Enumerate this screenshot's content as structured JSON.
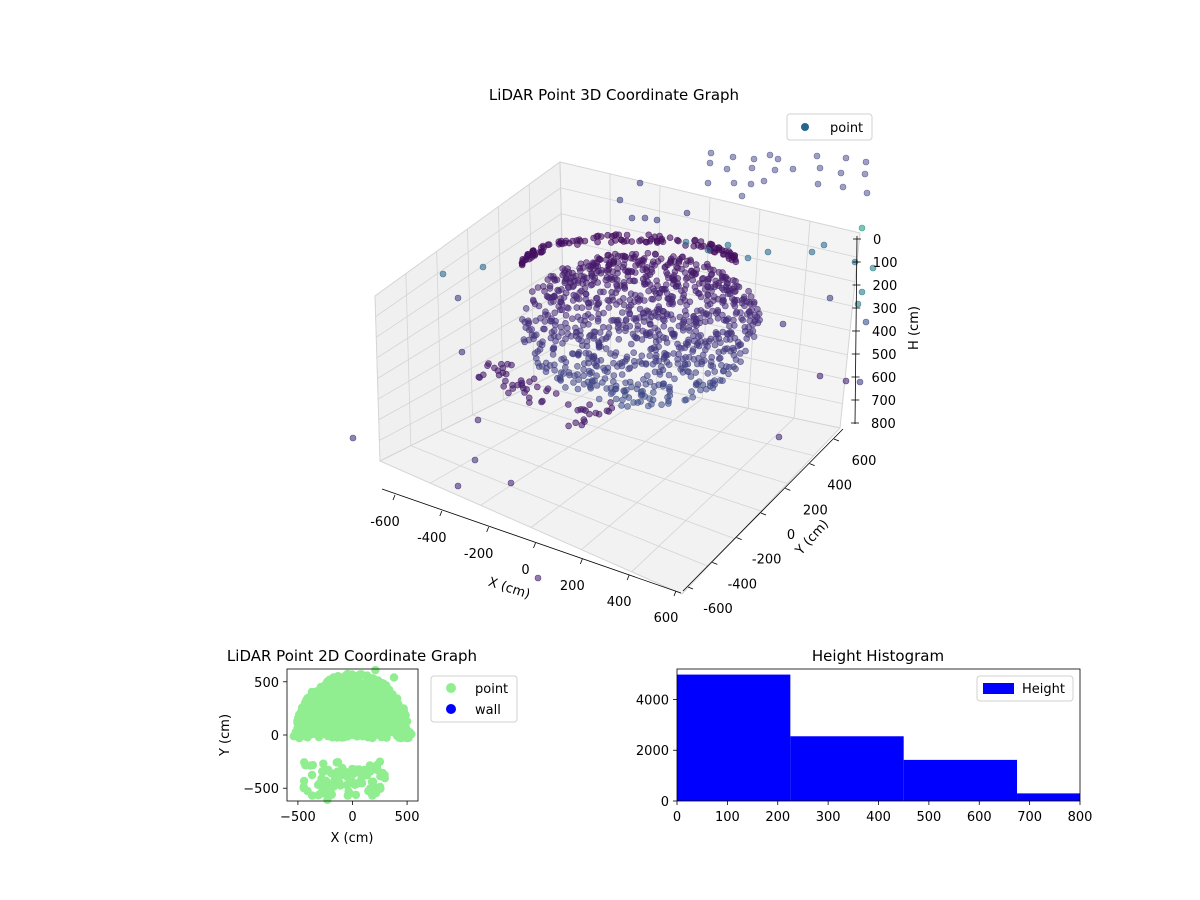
{
  "chart_data": [
    {
      "type": "scatter3d",
      "title": "LiDAR Point 3D Coordinate Graph",
      "xlabel": "X (cm)",
      "ylabel": "Y (cm)",
      "zlabel": "H (cm)",
      "xlim": [
        -600,
        600
      ],
      "ylim": [
        -600,
        600
      ],
      "zlim": [
        0,
        800
      ],
      "x_ticks": [
        "-600",
        "-400",
        "-200",
        "0",
        "200",
        "400",
        "600"
      ],
      "y_ticks": [
        "-600",
        "-400",
        "-200",
        "0",
        "200",
        "400",
        "600"
      ],
      "z_ticks": [
        "0",
        "100",
        "200",
        "300",
        "400",
        "500",
        "600",
        "700",
        "800"
      ],
      "z_inverted": true,
      "grid": true,
      "colormap": "viridis",
      "legend": {
        "position": "top-right",
        "entries": [
          {
            "label": "point",
            "color": "#26678e"
          }
        ]
      }
    },
    {
      "type": "scatter",
      "title": "LiDAR Point 2D Coordinate Graph",
      "xlabel": "X (cm)",
      "ylabel": "Y (cm)",
      "xlim": [
        -600,
        600
      ],
      "ylim": [
        -620,
        620
      ],
      "x_ticks": [
        "−500",
        "0",
        "500"
      ],
      "y_ticks": [
        "500",
        "0",
        "−500"
      ],
      "series": [
        {
          "name": "point",
          "color": "#90ee90"
        },
        {
          "name": "wall",
          "color": "#0000ff"
        }
      ],
      "legend": {
        "position": "outside-right"
      }
    },
    {
      "type": "bar",
      "title": "Height Histogram",
      "xlim": [
        0,
        800
      ],
      "ylim": [
        0,
        5200
      ],
      "x_ticks": [
        "0",
        "100",
        "200",
        "300",
        "400",
        "500",
        "600",
        "700",
        "800"
      ],
      "y_ticks": [
        "0",
        "2000",
        "4000"
      ],
      "bins": [
        {
          "from": 0,
          "to": 225,
          "count": 4980
        },
        {
          "from": 225,
          "to": 450,
          "count": 2550
        },
        {
          "from": 450,
          "to": 675,
          "count": 1620
        },
        {
          "from": 675,
          "to": 800,
          "count": 300
        }
      ],
      "series": [
        {
          "name": "Height",
          "color": "#0000ff"
        }
      ],
      "legend": {
        "position": "top-right"
      }
    }
  ]
}
